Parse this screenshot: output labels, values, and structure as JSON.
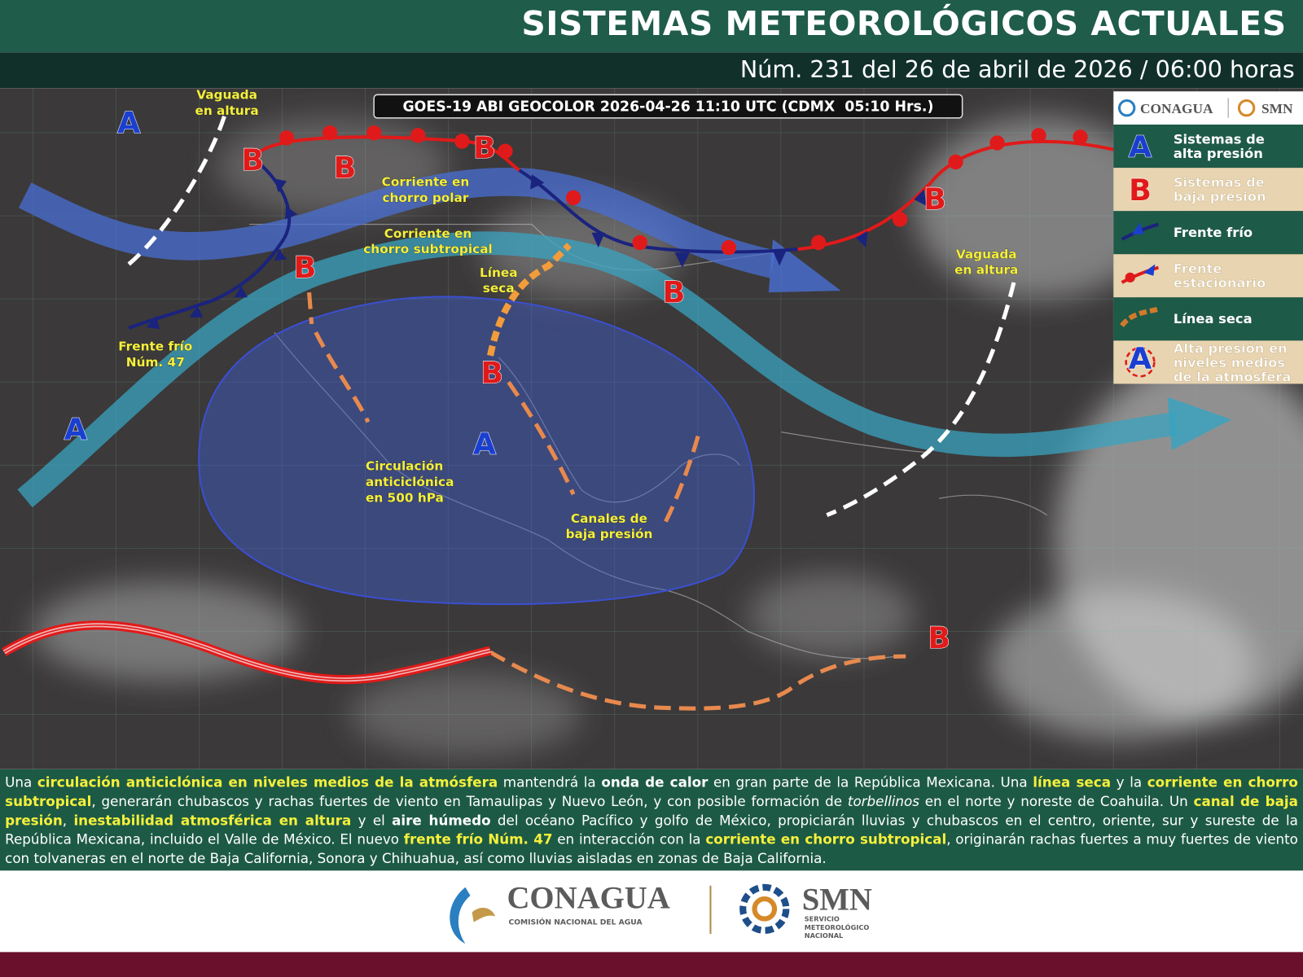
{
  "header": {
    "title": "SISTEMAS METEOROLÓGICOS ACTUALES",
    "subtitle": "Núm. 231 del 26 de abril de 2026 / 06:00 horas"
  },
  "map": {
    "caption": "GOES-19 ABI GEOCOLOR 2026-04-26 11:10 UTC (CDMX  05:10 Hrs.)",
    "labels": [
      [
        "Vaguada",
        "en altura"
      ],
      [
        "Corriente en",
        "chorro polar"
      ],
      [
        "Corriente en",
        "chorro subtropical"
      ],
      [
        "Línea",
        "seca"
      ],
      [
        "Frente frío",
        "Núm. 47"
      ],
      [
        "Circulación",
        "anticiclónica",
        "en 500 hPa"
      ],
      [
        "Canales de",
        "baja presión"
      ],
      [
        "Vaguada",
        "en altura"
      ]
    ],
    "systems": [
      "A",
      "B",
      "B",
      "B",
      "B",
      "B",
      "B",
      "A",
      "A",
      "B",
      "B"
    ]
  },
  "legend": {
    "logos": [
      "CONAGUA",
      "SMN"
    ],
    "items": [
      {
        "symbol": "A",
        "label": "Sistemas de alta presión"
      },
      {
        "symbol": "B",
        "label": "Sistemas de baja presión"
      },
      {
        "label": "Frente frío"
      },
      {
        "label": "Frente estacionario"
      },
      {
        "label": "Línea seca"
      },
      {
        "symbol": "A",
        "label": "Alta presión en niveles medios de la atmósfera"
      }
    ]
  },
  "description": [
    "Una ",
    "circulación anticiclónica en niveles medios de la atmósfera",
    " mantendrá la ",
    "onda de calor",
    " en gran parte de la República Mexicana. Una ",
    "línea seca",
    " y la ",
    "corriente en chorro subtropical",
    ", generarán chubascos y rachas fuertes de viento en Tamaulipas y Nuevo León, y con posible formación de ",
    "torbellinos",
    " en el norte y noreste de Coahuila. Un ",
    "canal de baja presión",
    ", ",
    "inestabilidad atmosférica en altura",
    " y el ",
    "aire húmedo",
    " del océano Pacífico y golfo de México, propiciarán lluvias y chubascos en el centro, oriente, sur y sureste de la República Mexicana, incluido el Valle de México. El nuevo ",
    "frente frío Núm. 47",
    " en interacción con la ",
    "corriente en chorro subtropical",
    ", originarán rachas fuertes a muy fuertes de viento con tolvaneras en el norte de Baja California, Sonora y Chihuahua, así como lluvias aisladas en zonas de Baja California."
  ],
  "footer": {
    "conagua": "CONAGUA",
    "conagua_sub": "COMISIÓN NACIONAL DEL AGUA",
    "smn": "SMN",
    "smn_sub": "SERVICIO METEOROLÓGICO NACIONAL"
  }
}
